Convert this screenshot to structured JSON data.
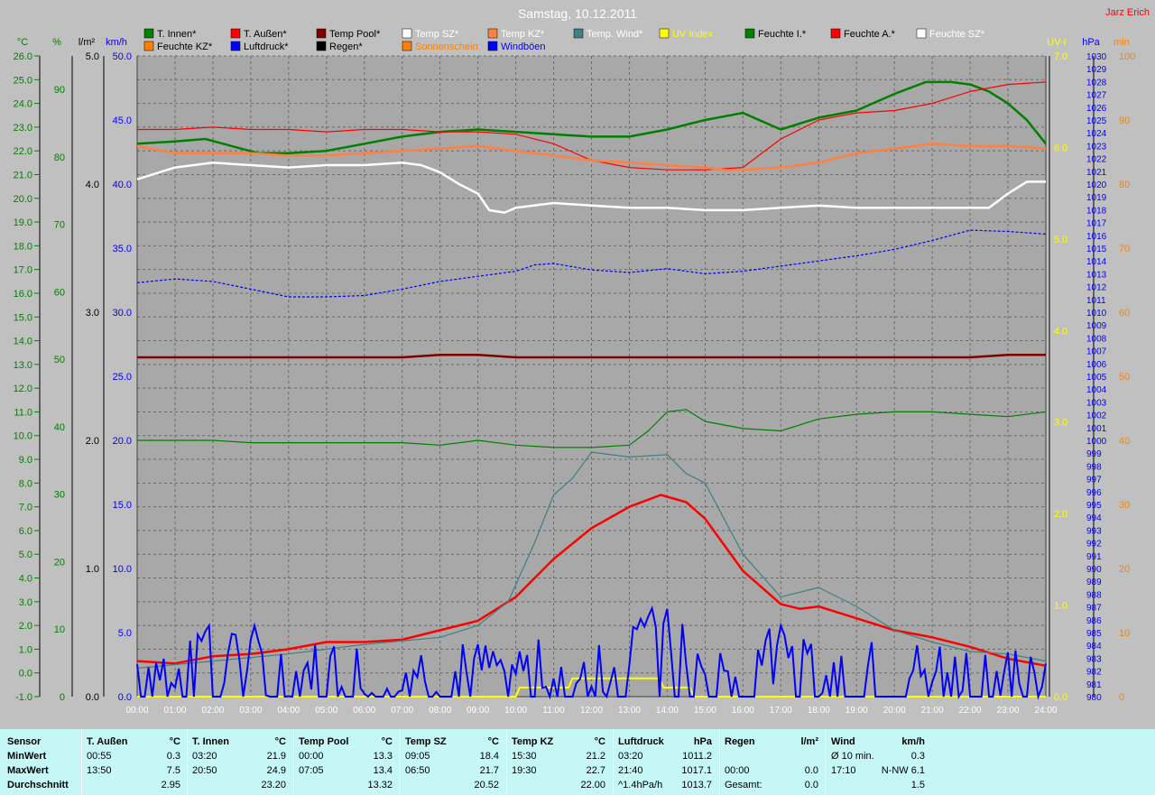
{
  "title": "Samstag, 10.12.2011",
  "author": "Jarz Erich",
  "colors": {
    "t_innen": "#008000",
    "t_aussen": "#ff0000",
    "temp_pool": "#800000",
    "temp_sz": "#ffffff",
    "temp_kz": "#ff8040",
    "temp_wind": "#408080",
    "uv": "#ffff00",
    "feuchte": "#008000",
    "luftdruck": "#0000ff",
    "regen": "#000000",
    "sonnenschein": "#ff8000",
    "windboeen": "#0000ff"
  },
  "chart_data": {
    "type": "line",
    "title": "Samstag, 10.12.2011",
    "x_ticks": [
      "00:00",
      "01:00",
      "02:00",
      "03:00",
      "04:00",
      "05:00",
      "06:00",
      "07:00",
      "08:00",
      "09:00",
      "10:00",
      "11:00",
      "12:00",
      "13:00",
      "14:00",
      "15:00",
      "16:00",
      "17:00",
      "18:00",
      "19:00",
      "20:00",
      "21:00",
      "22:00",
      "23:00",
      "24:00"
    ],
    "axes": {
      "temp": {
        "unit": "°C",
        "min": -1.0,
        "max": 26.0,
        "ticks": [
          "26.0",
          "25.0",
          "24.0",
          "23.0",
          "22.0",
          "21.0",
          "20.0",
          "19.0",
          "18.0",
          "17.0",
          "16.0",
          "15.0",
          "14.0",
          "13.0",
          "12.0",
          "11.0",
          "10.0",
          "9.0",
          "8.0",
          "7.0",
          "6.0",
          "5.0",
          "4.0",
          "3.0",
          "2.0",
          "1.0",
          "0.0",
          "-1.0"
        ]
      },
      "humidity": {
        "unit": "%",
        "ticks": [
          "90",
          "80",
          "70",
          "60",
          "50",
          "40",
          "30",
          "20",
          "10",
          "0"
        ]
      },
      "rain": {
        "unit": "l/m²",
        "min": 0,
        "max": 5,
        "ticks": [
          "5.0",
          "4.0",
          "3.0",
          "2.0",
          "1.0",
          "0.0"
        ]
      },
      "wind": {
        "unit": "km/h",
        "min": 0,
        "max": 50,
        "ticks": [
          "50.0",
          "45.0",
          "40.0",
          "35.0",
          "30.0",
          "25.0",
          "20.0",
          "15.0",
          "10.0",
          "5.0",
          "0.0"
        ]
      },
      "uv": {
        "unit": "UV-I",
        "min": 0,
        "max": 7,
        "ticks": [
          "7.0",
          "6.0",
          "5.0",
          "4.0",
          "3.0",
          "2.0",
          "1.0",
          "0.0"
        ]
      },
      "pressure": {
        "unit": "hPa",
        "min": 980,
        "max": 1030
      },
      "minutes": {
        "unit": "min",
        "min": 0,
        "max": 100,
        "ticks": [
          "100",
          "90",
          "80",
          "70",
          "60",
          "50",
          "40",
          "30",
          "20",
          "10",
          "0"
        ]
      }
    },
    "legend": {
      "row1": [
        "T. Innen*",
        "T. Außen*",
        "Temp Pool*",
        "Temp SZ*",
        "Temp KZ*",
        "Temp. Wind*",
        "UV Index",
        "Feuchte I.*",
        "Feuchte A.*",
        "Feuchte SZ*"
      ],
      "row2": [
        "Feuchte KZ*",
        "Luftdruck*",
        "Regen*",
        "Sonnenschein",
        "Windböen"
      ]
    },
    "series": [
      {
        "name": "T. Außen*",
        "axis": "temp",
        "x": [
          0,
          1,
          2,
          3,
          4,
          5,
          6,
          7,
          8,
          9,
          10,
          11,
          12,
          13,
          13.83,
          14.5,
          15,
          16,
          17,
          17.5,
          18,
          19,
          20,
          21,
          22,
          23,
          24
        ],
        "y": [
          0.5,
          0.4,
          0.7,
          0.8,
          1.0,
          1.3,
          1.3,
          1.4,
          1.8,
          2.2,
          3.2,
          4.8,
          6.1,
          7.0,
          7.5,
          7.2,
          6.5,
          4.3,
          2.9,
          2.7,
          2.8,
          2.3,
          1.8,
          1.5,
          1.1,
          0.6,
          0.3
        ]
      },
      {
        "name": "Temp. Wind*",
        "axis": "temp",
        "x": [
          0,
          2,
          4,
          6,
          8,
          9,
          9.8,
          10.5,
          11,
          11.5,
          12,
          13,
          14,
          14.5,
          15,
          16,
          17,
          18,
          19,
          20,
          21,
          22,
          23,
          24
        ],
        "y": [
          0.2,
          0.5,
          0.8,
          1.2,
          1.5,
          2.0,
          3.0,
          5.5,
          7.5,
          8.2,
          9.3,
          9.1,
          9.2,
          8.4,
          8.0,
          5.0,
          3.2,
          3.6,
          2.8,
          1.8,
          1.3,
          0.9,
          0.8,
          0.5
        ]
      },
      {
        "name": "T. Innen*",
        "axis": "temp",
        "x": [
          0,
          1,
          1.8,
          2.5,
          3.2,
          4,
          5,
          6,
          7,
          8,
          9,
          10,
          11,
          12,
          13,
          14,
          15,
          16,
          17,
          18,
          19,
          20,
          20.83,
          21.5,
          22,
          22.5,
          23,
          23.5,
          24
        ],
        "y": [
          22.3,
          22.4,
          22.5,
          22.2,
          21.9,
          21.9,
          22.0,
          22.3,
          22.6,
          22.8,
          22.9,
          22.8,
          22.7,
          22.6,
          22.6,
          22.9,
          23.3,
          23.6,
          22.9,
          23.4,
          23.7,
          24.4,
          24.9,
          24.9,
          24.8,
          24.5,
          24.0,
          23.3,
          22.3
        ]
      },
      {
        "name": "Feuchte A.*",
        "axis": "temp",
        "x": [
          0,
          1,
          2,
          3,
          4,
          5,
          6,
          7,
          8,
          9,
          10,
          11,
          12,
          13,
          14,
          15,
          16,
          17,
          18,
          19,
          20,
          21,
          22,
          23,
          24
        ],
        "y": [
          22.9,
          22.9,
          23.0,
          22.9,
          22.9,
          22.8,
          22.9,
          22.9,
          22.8,
          22.8,
          22.7,
          22.3,
          21.6,
          21.3,
          21.2,
          21.2,
          21.3,
          22.5,
          23.3,
          23.6,
          23.7,
          24.0,
          24.5,
          24.8,
          24.9
        ]
      },
      {
        "name": "Feuchte KZ*",
        "axis": "temp",
        "x": [
          0,
          1,
          2,
          3,
          4,
          5,
          6,
          7,
          8,
          9,
          10,
          11,
          12,
          13,
          14,
          15,
          15.5,
          16,
          17,
          18,
          19,
          20,
          21,
          22,
          23,
          24
        ],
        "y": [
          22.2,
          21.9,
          21.9,
          21.9,
          21.8,
          21.8,
          21.9,
          22.0,
          22.1,
          22.2,
          22.0,
          21.8,
          21.6,
          21.5,
          21.4,
          21.3,
          21.2,
          21.2,
          21.3,
          21.5,
          21.9,
          22.1,
          22.3,
          22.2,
          22.2,
          22.1
        ]
      },
      {
        "name": "Temp SZ*",
        "axis": "temp",
        "x": [
          0,
          1,
          2,
          3,
          4,
          5,
          6,
          7,
          7.5,
          8,
          8.5,
          9,
          9.3,
          9.7,
          10,
          11,
          12,
          13,
          14,
          15,
          15.5,
          16,
          17,
          18,
          19,
          20,
          21,
          22,
          22.5,
          23,
          23.5,
          24
        ],
        "y": [
          20.8,
          21.3,
          21.5,
          21.4,
          21.3,
          21.4,
          21.4,
          21.5,
          21.4,
          21.1,
          20.6,
          20.2,
          19.5,
          19.4,
          19.6,
          19.8,
          19.7,
          19.6,
          19.6,
          19.5,
          19.5,
          19.5,
          19.6,
          19.7,
          19.6,
          19.6,
          19.6,
          19.6,
          19.6,
          20.2,
          20.7,
          20.7
        ]
      },
      {
        "name": "Temp Pool*",
        "axis": "temp",
        "x": [
          0,
          7,
          8,
          9,
          10,
          20,
          21,
          22,
          23,
          24
        ],
        "y": [
          13.3,
          13.3,
          13.4,
          13.4,
          13.3,
          13.3,
          13.3,
          13.3,
          13.4,
          13.4
        ]
      },
      {
        "name": "Feuchte I.*",
        "axis": "temp",
        "x": [
          0,
          1,
          2,
          3,
          4,
          5,
          6,
          7,
          8,
          9,
          10,
          11,
          12,
          13,
          13.5,
          14,
          14.5,
          15,
          16,
          17,
          18,
          19,
          20,
          21,
          22,
          23,
          24
        ],
        "y": [
          9.8,
          9.8,
          9.8,
          9.7,
          9.7,
          9.7,
          9.7,
          9.7,
          9.6,
          9.8,
          9.6,
          9.5,
          9.5,
          9.6,
          10.2,
          11.0,
          11.1,
          10.6,
          10.3,
          10.2,
          10.7,
          10.9,
          11.0,
          11.0,
          10.9,
          10.8,
          11.0
        ]
      },
      {
        "name": "Luftdruck*",
        "axis": "pressure",
        "x": [
          0,
          1,
          2,
          3,
          4,
          5,
          6,
          7,
          8,
          9,
          10,
          10.5,
          11,
          12,
          13,
          14,
          15,
          16,
          17,
          18,
          19,
          20,
          21,
          22,
          23,
          24
        ],
        "y": [
          1012.3,
          1012.6,
          1012.4,
          1011.8,
          1011.2,
          1011.2,
          1011.3,
          1011.8,
          1012.4,
          1012.8,
          1013.2,
          1013.7,
          1013.8,
          1013.3,
          1013.1,
          1013.4,
          1013.0,
          1013.2,
          1013.6,
          1014.0,
          1014.4,
          1014.9,
          1015.6,
          1016.4,
          1016.3,
          1016.1
        ]
      },
      {
        "name": "UV Index",
        "axis": "uv",
        "x": [
          0,
          9.9,
          10,
          10.1,
          11.4,
          11.5,
          13.8,
          13.9,
          14.6,
          14.7,
          24
        ],
        "y": [
          0,
          0,
          0,
          0.1,
          0.1,
          0.2,
          0.2,
          0.1,
          0.1,
          0,
          0
        ]
      }
    ]
  },
  "summary": {
    "sensor_header": "Sensor",
    "row_labels": [
      "MinWert",
      "MaxWert",
      "Durchschnitt"
    ],
    "columns": [
      {
        "name": "T. Außen",
        "unit": "°C",
        "rows": [
          [
            "00:55",
            "0.3"
          ],
          [
            "13:50",
            "7.5"
          ],
          [
            "",
            "2.95"
          ]
        ]
      },
      {
        "name": "T. Innen",
        "unit": "°C",
        "rows": [
          [
            "03:20",
            "21.9"
          ],
          [
            "20:50",
            "24.9"
          ],
          [
            "",
            "23.20"
          ]
        ]
      },
      {
        "name": "Temp Pool",
        "unit": "°C",
        "rows": [
          [
            "00:00",
            "13.3"
          ],
          [
            "07:05",
            "13.4"
          ],
          [
            "",
            "13.32"
          ]
        ]
      },
      {
        "name": "Temp SZ",
        "unit": "°C",
        "rows": [
          [
            "09:05",
            "18.4"
          ],
          [
            "06:50",
            "21.7"
          ],
          [
            "",
            "20.52"
          ]
        ]
      },
      {
        "name": "Temp KZ",
        "unit": "°C",
        "rows": [
          [
            "15:30",
            "21.2"
          ],
          [
            "19:30",
            "22.7"
          ],
          [
            "",
            "22.00"
          ]
        ]
      },
      {
        "name": "Luftdruck",
        "unit": "hPa",
        "rows": [
          [
            "03:20",
            "1011.2"
          ],
          [
            "21:40",
            "1017.1"
          ],
          [
            "^1.4hPa/h",
            "1013.7"
          ]
        ]
      },
      {
        "name": "Regen",
        "unit": "l/m²",
        "rows": [
          [
            "",
            ""
          ],
          [
            "00:00",
            "0.0"
          ],
          [
            "Gesamt:",
            "0.0"
          ]
        ]
      },
      {
        "name": "Wind",
        "unit": "km/h",
        "rows": [
          [
            "Ø 10 min.",
            "0.3"
          ],
          [
            "17:10",
            "N-NW 6.1"
          ],
          [
            "",
            "1.5"
          ]
        ]
      }
    ]
  }
}
